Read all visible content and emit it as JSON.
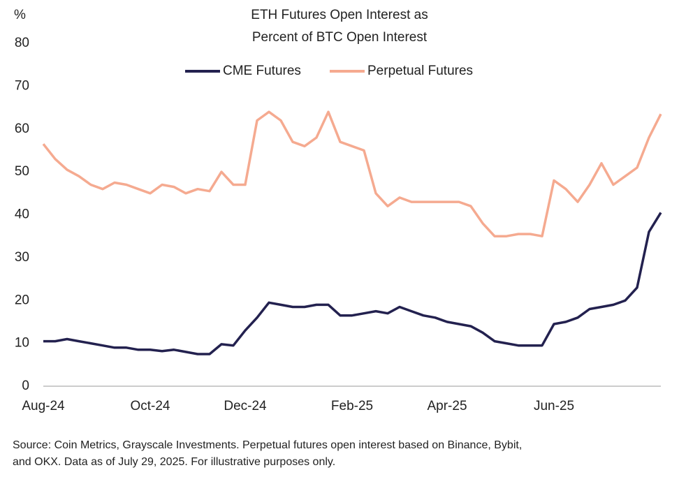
{
  "chart_data": {
    "type": "line",
    "title": [
      "ETH Futures Open Interest as",
      "Percent of BTC Open Interest"
    ],
    "y_label": "%",
    "source": [
      "Source: Coin Metrics, Grayscale Investments. Perpetual futures open interest based on Binance, Bybit,",
      "and OKX. Data as of July 29, 2025. For illustrative purposes only."
    ],
    "categories": [
      "Aug-24",
      null,
      null,
      null,
      null,
      null,
      null,
      null,
      null,
      "Oct-24",
      null,
      null,
      null,
      null,
      null,
      null,
      null,
      "Dec-24",
      null,
      null,
      null,
      null,
      null,
      null,
      null,
      null,
      "Feb-25",
      null,
      null,
      null,
      null,
      null,
      null,
      null,
      "Apr-25",
      null,
      null,
      null,
      null,
      null,
      null,
      null,
      null,
      "Jun-25",
      null,
      null,
      null,
      null,
      null,
      null,
      null,
      null,
      null
    ],
    "series": [
      {
        "name": "CME Futures",
        "color": "#23214f",
        "values": [
          10.5,
          10.5,
          11,
          10.5,
          10,
          9.5,
          9,
          9,
          8.5,
          8.5,
          8.2,
          8.5,
          8,
          7.5,
          7.5,
          9.8,
          9.5,
          13,
          16,
          19.5,
          19,
          18.5,
          18.5,
          19,
          19,
          16.5,
          16.5,
          17,
          17.5,
          17,
          18.5,
          17.5,
          16.5,
          16,
          15,
          14.5,
          14,
          12.5,
          10.5,
          10,
          9.5,
          9.5,
          9.5,
          14.5,
          15,
          16,
          18,
          18.5,
          19,
          20,
          23,
          36,
          40.5
        ]
      },
      {
        "name": "Perpetual Futures",
        "color": "#f5aa90",
        "values": [
          56.5,
          53,
          50.5,
          49,
          47,
          46,
          47.5,
          47,
          46,
          45,
          47,
          46.5,
          45,
          46,
          45.5,
          50,
          47,
          47,
          62,
          64,
          62,
          57,
          56,
          58,
          64,
          57,
          56,
          55,
          45,
          42,
          44,
          43,
          43,
          43,
          43,
          43,
          42,
          38,
          35,
          35,
          35.5,
          35.5,
          35,
          48,
          46,
          43,
          47,
          52,
          47,
          49,
          51,
          58,
          63.5
        ]
      }
    ],
    "ylim": [
      0,
      80
    ],
    "yticks": [
      0,
      10,
      20,
      30,
      40,
      50,
      60,
      70,
      80
    ],
    "legend": "top",
    "grid": false
  }
}
